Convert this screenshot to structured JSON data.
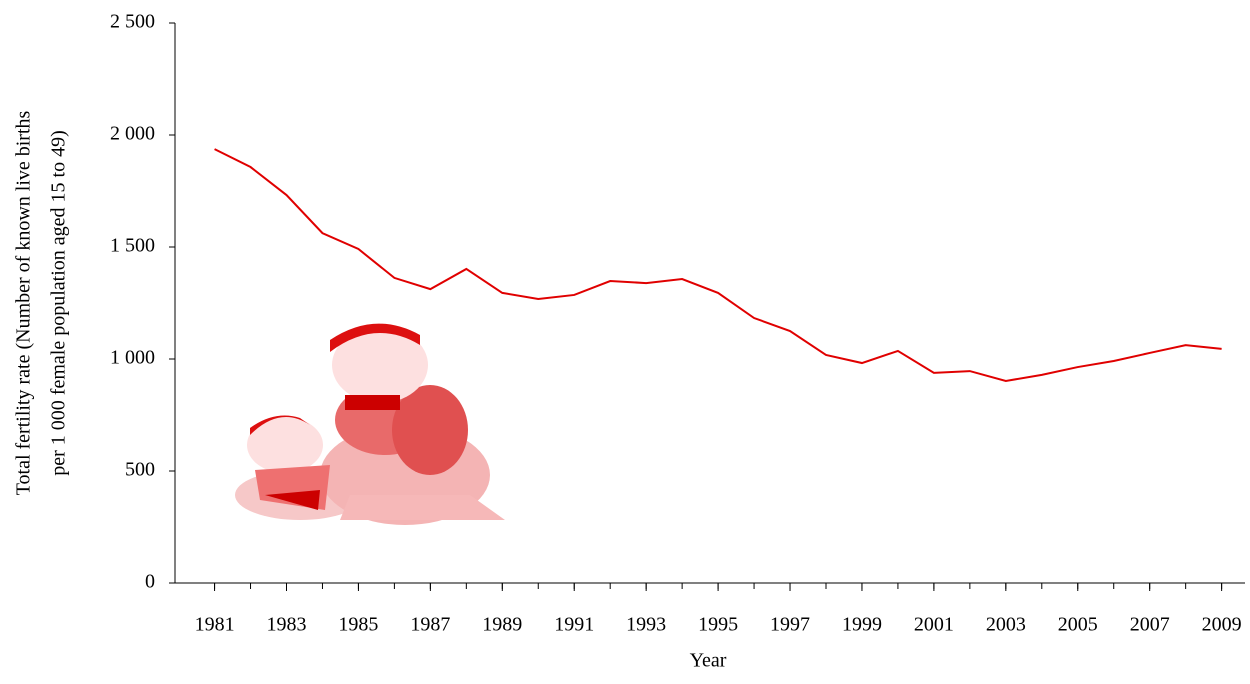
{
  "chart_data": {
    "type": "line",
    "x_label": "Year",
    "y_label": [
      "Total fertility rate (Number of known live births",
      "per 1 000 female population aged 15 to 49)"
    ],
    "x": [
      1981,
      1982,
      1983,
      1984,
      1985,
      1986,
      1987,
      1988,
      1989,
      1990,
      1991,
      1992,
      1993,
      1994,
      1995,
      1996,
      1997,
      1998,
      1999,
      2000,
      2001,
      2002,
      2003,
      2004,
      2005,
      2006,
      2007,
      2008,
      2009
    ],
    "series": [
      {
        "color": "#e00000",
        "values": [
          1937,
          1857,
          1732,
          1562,
          1491,
          1362,
          1312,
          1402,
          1295,
          1268,
          1286,
          1348,
          1339,
          1357,
          1295,
          1183,
          1125,
          1018,
          982,
          1036,
          938,
          946,
          902,
          929,
          964,
          991,
          1027,
          1062,
          1045
        ]
      }
    ],
    "xlim": [
      1979.9,
      2009.65
    ],
    "xticks": [
      1981,
      1983,
      1985,
      1987,
      1989,
      1991,
      1993,
      1995,
      1997,
      1999,
      2001,
      2003,
      2005,
      2007,
      2009
    ],
    "ylim": [
      0,
      2500
    ],
    "yticks": [
      0,
      500,
      {
        "value": 1000,
        "label": "1 000"
      },
      {
        "value": 1500,
        "label": "1 500"
      },
      {
        "value": 2000,
        "label": "2 000"
      },
      {
        "value": 2500,
        "label": "2 500"
      }
    ],
    "grid": false
  }
}
